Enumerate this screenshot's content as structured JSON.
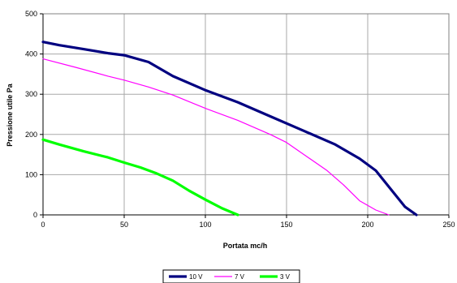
{
  "chart_data": {
    "type": "line",
    "title": "",
    "xlabel": "Portata mc/h",
    "ylabel": "Pressione utile Pa",
    "xlim": [
      0,
      250
    ],
    "ylim": [
      0,
      500
    ],
    "x_ticks": [
      "0",
      "50",
      "100",
      "150",
      "200",
      "250"
    ],
    "y_ticks": [
      "0",
      "100",
      "200",
      "300",
      "400",
      "500"
    ],
    "grid": true,
    "legend_position": "bottom",
    "series": [
      {
        "name": "10 V",
        "color": "#000080",
        "points": [
          [
            0,
            430
          ],
          [
            10,
            422
          ],
          [
            25,
            412
          ],
          [
            40,
            402
          ],
          [
            50,
            397
          ],
          [
            65,
            380
          ],
          [
            80,
            345
          ],
          [
            100,
            310
          ],
          [
            120,
            280
          ],
          [
            140,
            245
          ],
          [
            160,
            210
          ],
          [
            180,
            175
          ],
          [
            195,
            140
          ],
          [
            205,
            110
          ],
          [
            215,
            60
          ],
          [
            223,
            20
          ],
          [
            230,
            0
          ]
        ]
      },
      {
        "name": "7 V",
        "color": "#ff00ff",
        "points": [
          [
            0,
            388
          ],
          [
            20,
            367
          ],
          [
            40,
            345
          ],
          [
            50,
            335
          ],
          [
            65,
            318
          ],
          [
            80,
            298
          ],
          [
            100,
            265
          ],
          [
            120,
            235
          ],
          [
            140,
            200
          ],
          [
            150,
            180
          ],
          [
            160,
            152
          ],
          [
            175,
            110
          ],
          [
            185,
            75
          ],
          [
            195,
            35
          ],
          [
            205,
            12
          ],
          [
            213,
            0
          ]
        ]
      },
      {
        "name": "3 V",
        "color": "#00ff00",
        "points": [
          [
            0,
            187
          ],
          [
            10,
            175
          ],
          [
            25,
            158
          ],
          [
            40,
            143
          ],
          [
            50,
            130
          ],
          [
            60,
            118
          ],
          [
            70,
            103
          ],
          [
            80,
            85
          ],
          [
            90,
            60
          ],
          [
            100,
            38
          ],
          [
            110,
            17
          ],
          [
            120,
            0
          ]
        ]
      }
    ]
  }
}
